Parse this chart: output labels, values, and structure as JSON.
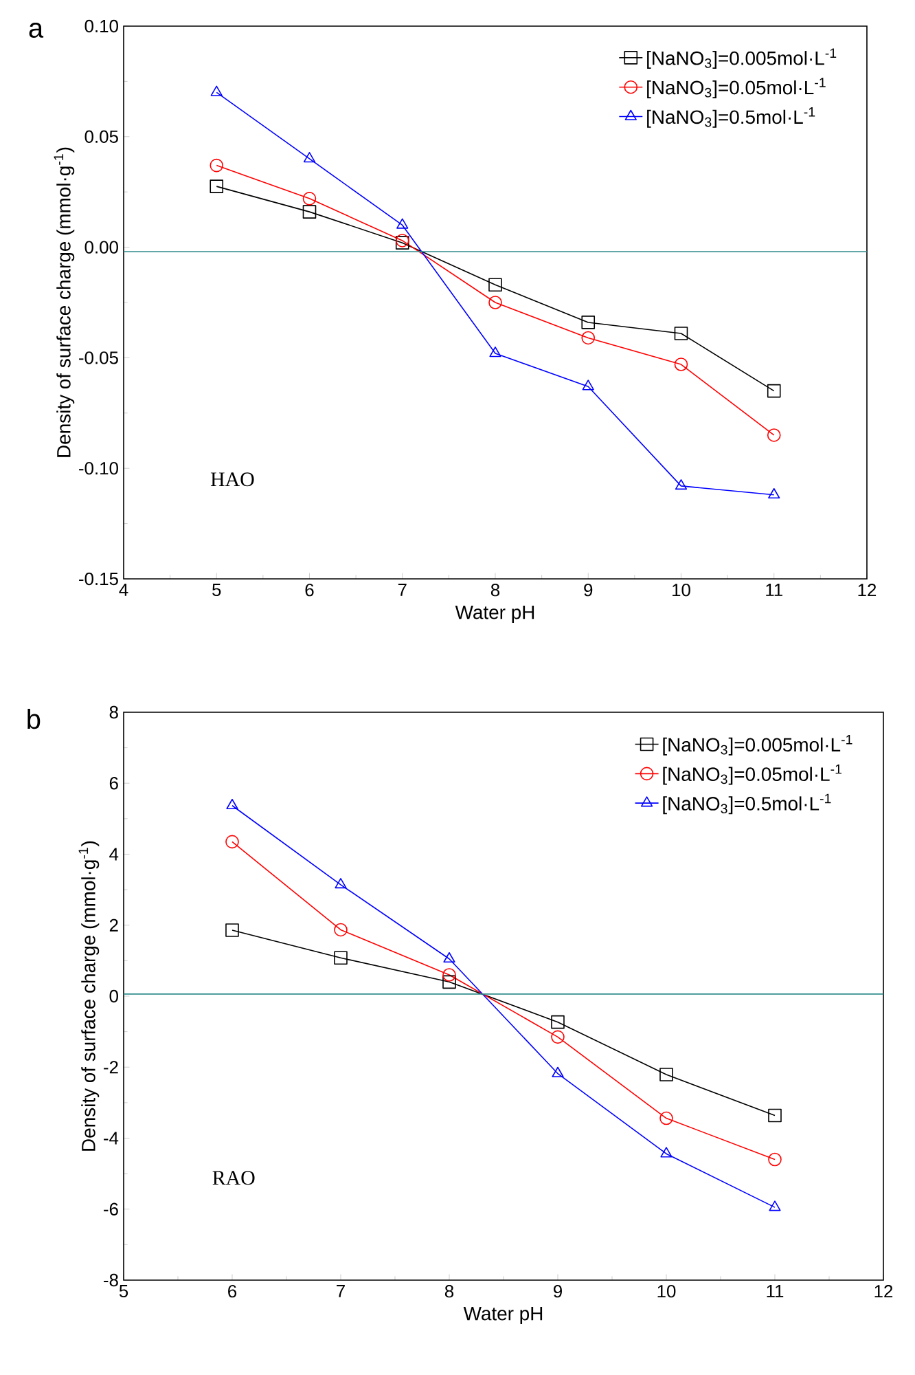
{
  "chart_data": [
    {
      "type": "line",
      "title": "a",
      "xlabel": "Water pH",
      "ylabel": "Density of surface charge (mmol·g$^{-1}$)",
      "x": [
        5,
        6,
        7,
        8,
        9,
        10,
        11
      ],
      "series": [
        {
          "name": "[NaNO$_{3}$]=0.005mol·L$^{-1}$",
          "color": "#000000",
          "marker": "square",
          "values": [
            0.0275,
            0.016,
            0.002,
            -0.017,
            -0.034,
            -0.039,
            -0.065
          ]
        },
        {
          "name": "[NaNO$_{3}$]=0.05mol·L$^{-1}$",
          "color": "#ff0000",
          "marker": "circle",
          "values": [
            0.037,
            0.022,
            0.003,
            -0.025,
            -0.041,
            -0.053,
            -0.085
          ]
        },
        {
          "name": "[NaNO$_{3}$]=0.5mol·L$^{-1}$",
          "color": "#0000ff",
          "marker": "triangle",
          "values": [
            0.07,
            0.04,
            0.01,
            -0.048,
            -0.063,
            -0.108,
            -0.112
          ]
        }
      ],
      "xlim": [
        4,
        12
      ],
      "xticks": [
        4,
        5,
        6,
        7,
        8,
        9,
        10,
        11,
        12
      ],
      "ylim": [
        -0.15,
        0.1
      ],
      "yticks": [
        {
          "value": -0.15,
          "label": "-0.15"
        },
        {
          "value": -0.1,
          "label": "-0.10"
        },
        {
          "value": -0.05,
          "label": "-0.05"
        },
        {
          "value": 0,
          "label": "0.00"
        },
        {
          "value": 0.05,
          "label": "0.05"
        },
        {
          "value": 0.1,
          "label": "0.10"
        }
      ],
      "ref_lines": [
        {
          "axis": "y",
          "value": -0.002,
          "color": "#2e8b8b"
        }
      ],
      "annotations": [
        "HAO"
      ],
      "legend": "top right",
      "grid": false
    },
    {
      "type": "line",
      "title": "b",
      "xlabel": "Water pH",
      "ylabel": "Density of surface charge (mmol·g$^{-1}$)",
      "x": [
        6,
        7,
        8,
        9,
        10,
        11
      ],
      "series": [
        {
          "name": "[NaNO$_{3}$]=0.005mol·L$^{-1}$",
          "color": "#000000",
          "marker": "square",
          "values": [
            1.86,
            1.08,
            0.4,
            -0.73,
            -2.21,
            -3.36
          ]
        },
        {
          "name": "[NaNO$_{3}$]=0.05mol·L$^{-1}$",
          "color": "#ff0000",
          "marker": "circle",
          "values": [
            4.35,
            1.87,
            0.6,
            -1.15,
            -3.44,
            -4.6
          ]
        },
        {
          "name": "[NaNO$_{3}$]=0.5mol·L$^{-1}$",
          "color": "#0000ff",
          "marker": "triangle",
          "values": [
            5.37,
            3.14,
            1.05,
            -2.18,
            -4.44,
            -5.95
          ]
        }
      ],
      "xlim": [
        5,
        12
      ],
      "xticks": [
        5,
        6,
        7,
        8,
        9,
        10,
        11,
        12
      ],
      "ylim": [
        -8,
        8
      ],
      "yticks": [
        -8,
        -6,
        -4,
        -2,
        0,
        2,
        4,
        6,
        8
      ],
      "ref_lines": [
        {
          "axis": "y",
          "value": 0.06,
          "color": "#2e8b8b"
        }
      ],
      "annotations": [
        "RAO"
      ],
      "legend": "top right",
      "grid": false
    }
  ]
}
